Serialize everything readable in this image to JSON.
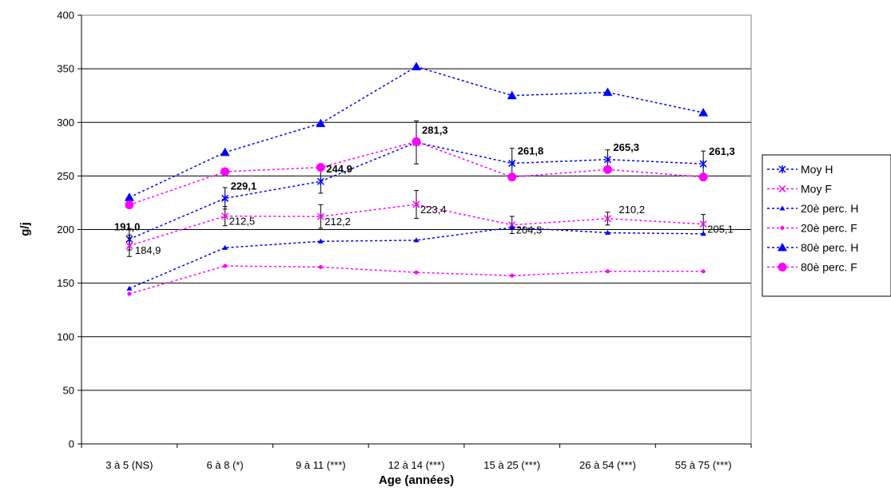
{
  "chart_data": {
    "type": "line",
    "title": "",
    "xlabel": "Age (années)",
    "ylabel": "g/j",
    "ylim": [
      0,
      400
    ],
    "yticks": [
      0,
      50,
      100,
      150,
      200,
      250,
      300,
      350,
      400
    ],
    "grid": true,
    "legend_position": "right",
    "categories": [
      "3 à 5 (NS)",
      "6 à 8 (*)",
      "9 à 11 (***)",
      "12 à 14 (***)",
      "15 à 25 (***)",
      "26 à 54 (***)",
      "55 à 75 (***)"
    ],
    "series": [
      {
        "name": "Moy H",
        "color": "#0000FF",
        "marker": "asterisk",
        "values": [
          191.0,
          229.1,
          244.9,
          281.3,
          261.8,
          265.3,
          261.3
        ],
        "labels": [
          "191,0",
          "229,1",
          "244,9",
          "281,3",
          "261,8",
          "265,3",
          "261,3"
        ],
        "error": [
          10,
          10,
          11,
          20,
          14,
          9,
          12
        ]
      },
      {
        "name": "Moy F",
        "color": "#FF00FF",
        "marker": "cross",
        "values": [
          184.9,
          212.5,
          212.2,
          223.4,
          204.3,
          210.2,
          205.1
        ],
        "labels": [
          "184,9",
          "212,5",
          "212,2",
          "223,4",
          "204,3",
          "210,2",
          "205,1"
        ],
        "error": [
          10,
          9,
          11,
          13,
          8,
          6,
          9
        ]
      },
      {
        "name": "20è perc. H",
        "color": "#0000FF",
        "marker": "small-triangle",
        "values": [
          145,
          183,
          189,
          190,
          202,
          197,
          196
        ]
      },
      {
        "name": "20è perc. F",
        "color": "#FF00FF",
        "marker": "small-circle",
        "values": [
          140,
          166,
          165,
          160,
          157,
          161,
          161
        ]
      },
      {
        "name": "80è perc. H",
        "color": "#0000FF",
        "marker": "triangle",
        "values": [
          230,
          272,
          299,
          352,
          325,
          328,
          309
        ]
      },
      {
        "name": "80è perc. F",
        "color": "#FF00FF",
        "marker": "circle",
        "values": [
          223,
          254,
          258,
          282,
          249,
          256,
          249
        ]
      }
    ]
  }
}
